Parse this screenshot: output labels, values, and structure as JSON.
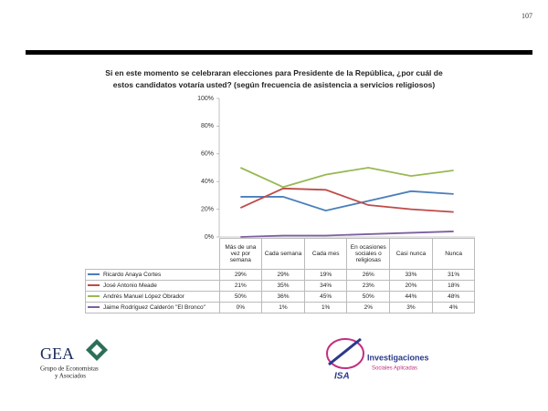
{
  "page_number": "107",
  "chart_data": {
    "type": "line",
    "title": "Si en este momento se celebraran elecciones para Presidente de la República, ¿por cuál de estos candidatos votaría usted? (según frecuencia de asistencia a servicios religiosos)",
    "categories": [
      "Más de una vez por semana",
      "Cada semana",
      "Cada mes",
      "En ocasiones sociales o religiosas",
      "Casi nunca",
      "Nunca"
    ],
    "series": [
      {
        "name": "Ricardo Anaya Cortes",
        "color": "#4a7ebb",
        "values": [
          29,
          29,
          19,
          26,
          33,
          31
        ],
        "value_labels": [
          "29%",
          "29%",
          "19%",
          "26%",
          "33%",
          "31%"
        ]
      },
      {
        "name": "José Antonio Meade",
        "color": "#be4b48",
        "values": [
          21,
          35,
          34,
          23,
          20,
          18
        ],
        "value_labels": [
          "21%",
          "35%",
          "34%",
          "23%",
          "20%",
          "18%"
        ]
      },
      {
        "name": "Andrés Manuel López Obrador",
        "color": "#98b954",
        "values": [
          50,
          36,
          45,
          50,
          44,
          48
        ],
        "value_labels": [
          "50%",
          "36%",
          "45%",
          "50%",
          "44%",
          "48%"
        ]
      },
      {
        "name": "Jaime Rodríguez Calderón \"El Bronco\"",
        "color": "#7d60a0",
        "values": [
          0,
          1,
          1,
          2,
          3,
          4
        ],
        "value_labels": [
          "0%",
          "1%",
          "1%",
          "2%",
          "3%",
          "4%"
        ]
      }
    ],
    "ylim": [
      0,
      100
    ],
    "yticks": [
      {
        "value": 0,
        "label": "0%"
      },
      {
        "value": 20,
        "label": "20%"
      },
      {
        "value": 40,
        "label": "40%"
      },
      {
        "value": 60,
        "label": "60%"
      },
      {
        "value": 80,
        "label": "80%"
      },
      {
        "value": 100,
        "label": "100%"
      }
    ],
    "grid": false
  },
  "logos": {
    "gea": {
      "name": "GEA",
      "line1": "Grupo de Economistas",
      "line2": "y Asociados"
    },
    "isa": {
      "name": "ISA",
      "line1": "Investigaciones",
      "line2": "Sociales Aplicadas"
    }
  }
}
